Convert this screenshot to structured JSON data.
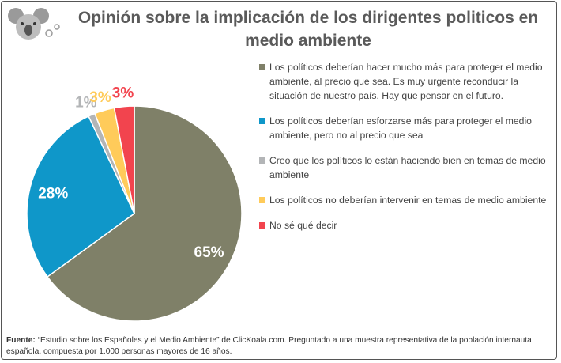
{
  "chart_data": {
    "type": "pie",
    "title": "Opinión sobre la implicación de los dirigentes politicos en medio ambiente",
    "categories": [
      "Los políticos deberían hacer mucho más para proteger el medio ambiente, al precio que sea. Es muy urgente reconducir la situación de nuestro país. Hay que pensar en el futuro.",
      "Los políticos deberían esforzarse más para proteger el medio ambiente, pero no al precio que sea",
      "Creo que los políticos lo están haciendo bien en temas de medio ambiente",
      "Los políticos no deberían intervenir en temas de medio ambiente",
      "No sé qué decir"
    ],
    "values": [
      65,
      28,
      1,
      3,
      3
    ],
    "value_labels": [
      "65%",
      "28%",
      "1%",
      "3%",
      "3%"
    ],
    "colors": [
      "#7f8068",
      "#0f97c9",
      "#b3b5b7",
      "#ffcb5a",
      "#f2444e"
    ],
    "legend": "right",
    "source_label": "Fuente:",
    "source": "“Estudio sobre los Españoles y el Medio Ambiente” de ClicKoala.com. Preguntado a una muestra representativa de la población internauta española, compuesta por 1.000 personas mayores de 16 años."
  }
}
